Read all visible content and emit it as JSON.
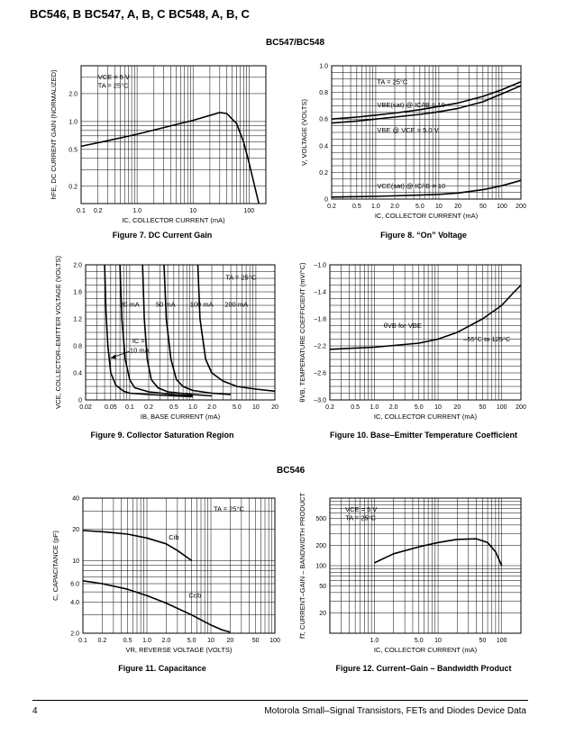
{
  "header": "BC546, B BC547, A, B, C BC548, A, B, C",
  "sections": {
    "top": "BC547/BC548",
    "bottom": "BC546"
  },
  "figures": [
    "Figure 7. DC Current Gain",
    "Figure 8. “On” Voltage",
    "Figure 9. Collector Saturation Region",
    "Figure 10. Base–Emitter Temperature Coefficient",
    "Figure 11. Capacitance",
    "Figure 12. Current–Gain – Bandwidth Product"
  ],
  "footer": {
    "page": "4",
    "text": "Motorola Small–Signal Transistors, FETs and Diodes Device Data"
  },
  "chart_data": [
    {
      "type": "line",
      "xscale": "log",
      "yscale": "log",
      "xlim": [
        0.1,
        200
      ],
      "ylim": [
        0.13,
        4
      ],
      "xlabel": "IC, COLLECTOR CURRENT (mA)",
      "ylabel": "hFE, DC CURRENT GAIN (NORMALIZED)",
      "xticks": [
        {
          "v": 0.1,
          "t": "0.1"
        },
        {
          "v": 0.2,
          "t": "0.2"
        },
        {
          "v": 1,
          "t": "1.0"
        },
        {
          "v": 10,
          "t": "10"
        },
        {
          "v": 100,
          "t": "100"
        }
      ],
      "yticks": [
        {
          "v": 0.2,
          "t": "0.2"
        },
        {
          "v": 0.5,
          "t": "0.5"
        },
        {
          "v": 1,
          "t": "1.0"
        },
        {
          "v": 2,
          "t": "2.0"
        }
      ],
      "annotations": [
        {
          "x": 0.2,
          "y": 2.85,
          "t": "VCE = 5 V"
        },
        {
          "x": 0.2,
          "y": 2.3,
          "t": "TA = 25°C"
        }
      ],
      "series": [
        {
          "x": [
            0.1,
            0.3,
            1,
            3,
            10,
            30,
            40,
            60,
            80,
            100,
            150
          ],
          "y": [
            0.54,
            0.62,
            0.73,
            0.86,
            1.03,
            1.25,
            1.22,
            0.95,
            0.6,
            0.36,
            0.13
          ]
        }
      ]
    },
    {
      "type": "line",
      "xscale": "log",
      "yscale": "linear",
      "xlim": [
        0.2,
        200
      ],
      "ylim": [
        0,
        1
      ],
      "xlabel": "IC, COLLECTOR CURRENT (mA)",
      "ylabel": "V, VOLTAGE (VOLTS)",
      "xticks": [
        {
          "v": 0.2,
          "t": "0.2"
        },
        {
          "v": 0.5,
          "t": "0.5"
        },
        {
          "v": 1,
          "t": "1.0"
        },
        {
          "v": 2,
          "t": "2.0"
        },
        {
          "v": 5,
          "t": "5.0"
        },
        {
          "v": 10,
          "t": "10"
        },
        {
          "v": 20,
          "t": "20"
        },
        {
          "v": 50,
          "t": "50"
        },
        {
          "v": 100,
          "t": "100"
        },
        {
          "v": 200,
          "t": "200"
        }
      ],
      "yticks": [
        {
          "v": 0,
          "t": "0"
        },
        {
          "v": 0.2,
          "t": "0.2"
        },
        {
          "v": 0.4,
          "t": "0.4"
        },
        {
          "v": 0.6,
          "t": "0.6"
        },
        {
          "v": 0.8,
          "t": "0.8"
        },
        {
          "v": 1,
          "t": "1.0"
        }
      ],
      "annotations": [
        {
          "x": 1.05,
          "y": 0.86,
          "t": "TA = 25°C"
        },
        {
          "x": 1.05,
          "y": 0.69,
          "t": "VBE(sat) @ IC/IB = 10"
        },
        {
          "x": 1.05,
          "y": 0.5,
          "t": "VBE @ VCE = 5.0 V"
        },
        {
          "x": 1.05,
          "y": 0.08,
          "t": "VCE(sat) @ IC/IB = 10"
        }
      ],
      "series": [
        {
          "x": [
            0.2,
            0.5,
            1,
            2,
            5,
            10,
            20,
            50,
            100,
            200
          ],
          "y": [
            0.6,
            0.615,
            0.63,
            0.645,
            0.67,
            0.695,
            0.72,
            0.77,
            0.82,
            0.88
          ]
        },
        {
          "x": [
            0.2,
            0.5,
            1,
            2,
            5,
            10,
            20,
            50,
            100,
            200
          ],
          "y": [
            0.57,
            0.585,
            0.6,
            0.615,
            0.635,
            0.655,
            0.68,
            0.73,
            0.79,
            0.85
          ]
        },
        {
          "x": [
            0.2,
            1,
            5,
            10,
            20,
            50,
            100,
            200
          ],
          "y": [
            0.015,
            0.02,
            0.03,
            0.035,
            0.045,
            0.07,
            0.1,
            0.14
          ]
        }
      ]
    },
    {
      "type": "line",
      "xscale": "log",
      "yscale": "linear",
      "xlim": [
        0.02,
        20
      ],
      "ylim": [
        0,
        2
      ],
      "xlabel": "IB, BASE CURRENT (mA)",
      "ylabel": "VCE, COLLECTOR–EMITTER VOLTAGE (VOLTS)",
      "xticks": [
        {
          "v": 0.02,
          "t": "0.02"
        },
        {
          "v": 0.05,
          "t": "0.05"
        },
        {
          "v": 0.1,
          "t": "0.1"
        },
        {
          "v": 0.2,
          "t": "0.2"
        },
        {
          "v": 0.5,
          "t": "0.5"
        },
        {
          "v": 1,
          "t": "1.0"
        },
        {
          "v": 2,
          "t": "2.0"
        },
        {
          "v": 5,
          "t": "5.0"
        },
        {
          "v": 10,
          "t": "10"
        },
        {
          "v": 20,
          "t": "20"
        }
      ],
      "yticks": [
        {
          "v": 0,
          "t": "0"
        },
        {
          "v": 0.4,
          "t": "0.4"
        },
        {
          "v": 0.8,
          "t": "0.8"
        },
        {
          "v": 1.2,
          "t": "1.2"
        },
        {
          "v": 1.6,
          "t": "1.6"
        },
        {
          "v": 2,
          "t": "2.0"
        }
      ],
      "annotations": [
        {
          "x": 3.3,
          "y": 1.78,
          "t": "TA = 25°C"
        },
        {
          "x": 0.07,
          "y": 1.38,
          "t": "20 mA"
        },
        {
          "x": 0.26,
          "y": 1.38,
          "t": "50 mA"
        },
        {
          "x": 0.9,
          "y": 1.38,
          "t": "100 mA"
        },
        {
          "x": 3.2,
          "y": 1.38,
          "t": "200 mA"
        },
        {
          "x": 0.11,
          "y": 0.84,
          "t": "IC ="
        },
        {
          "x": 0.1,
          "y": 0.7,
          "t": "10 mA"
        }
      ],
      "series": [
        {
          "x": [
            0.04,
            0.042,
            0.045,
            0.05,
            0.06,
            0.08,
            0.1,
            0.2,
            0.5,
            1
          ],
          "y": [
            2.0,
            1.3,
            0.8,
            0.4,
            0.22,
            0.13,
            0.1,
            0.08,
            0.06,
            0.05
          ]
        },
        {
          "x": [
            0.07,
            0.075,
            0.085,
            0.1,
            0.12,
            0.2,
            0.5,
            1
          ],
          "y": [
            2.0,
            1.2,
            0.6,
            0.3,
            0.18,
            0.12,
            0.08,
            0.06
          ]
        },
        {
          "x": [
            0.16,
            0.17,
            0.19,
            0.22,
            0.28,
            0.4,
            1,
            2
          ],
          "y": [
            2.0,
            1.2,
            0.6,
            0.3,
            0.18,
            0.12,
            0.08,
            0.06
          ]
        },
        {
          "x": [
            0.35,
            0.38,
            0.45,
            0.55,
            0.7,
            1,
            2,
            4
          ],
          "y": [
            2.0,
            1.2,
            0.6,
            0.3,
            0.2,
            0.14,
            0.1,
            0.08
          ]
        },
        {
          "x": [
            1.2,
            1.3,
            1.6,
            2,
            3,
            5,
            10,
            20
          ],
          "y": [
            2.0,
            1.2,
            0.6,
            0.4,
            0.28,
            0.2,
            0.16,
            0.13
          ]
        }
      ]
    },
    {
      "type": "line",
      "xscale": "log",
      "yscale": "linear",
      "xlim": [
        0.2,
        200
      ],
      "ylim": [
        -3,
        -1
      ],
      "xlabel": "IC, COLLECTOR CURRENT (mA)",
      "ylabel": "θVB, TEMPERATURE COEFFICIENT (mV/°C)",
      "xticks": [
        {
          "v": 0.2,
          "t": "0.2"
        },
        {
          "v": 0.5,
          "t": "0.5"
        },
        {
          "v": 1,
          "t": "1.0"
        },
        {
          "v": 2,
          "t": "2.0"
        },
        {
          "v": 5,
          "t": "5.0"
        },
        {
          "v": 10,
          "t": "10"
        },
        {
          "v": 20,
          "t": "20"
        },
        {
          "v": 50,
          "t": "50"
        },
        {
          "v": 100,
          "t": "100"
        },
        {
          "v": 200,
          "t": "200"
        }
      ],
      "yticks": [
        {
          "v": -1,
          "t": "–1.0"
        },
        {
          "v": -1.4,
          "t": "–1.4"
        },
        {
          "v": -1.8,
          "t": "–1.8"
        },
        {
          "v": -2.2,
          "t": "–2.2"
        },
        {
          "v": -2.6,
          "t": "–2.6"
        },
        {
          "v": -3,
          "t": "–3.0"
        }
      ],
      "annotations": [
        {
          "x": 1.4,
          "y": -1.93,
          "t": "θVB for VBE"
        },
        {
          "x": 25,
          "y": -2.13,
          "t": "–55°C to 125°C"
        }
      ],
      "series": [
        {
          "x": [
            0.2,
            1,
            5,
            10,
            20,
            50,
            100,
            150,
            200
          ],
          "y": [
            -2.25,
            -2.22,
            -2.16,
            -2.1,
            -2.0,
            -1.8,
            -1.6,
            -1.42,
            -1.3
          ]
        }
      ]
    },
    {
      "type": "line",
      "xscale": "log",
      "yscale": "log",
      "xlim": [
        0.1,
        100
      ],
      "ylim": [
        2,
        40
      ],
      "xlabel": "VR, REVERSE VOLTAGE (VOLTS)",
      "ylabel": "C, CAPACITANCE (pF)",
      "xticks": [
        {
          "v": 0.1,
          "t": "0.1"
        },
        {
          "v": 0.2,
          "t": "0.2"
        },
        {
          "v": 0.5,
          "t": "0.5"
        },
        {
          "v": 1,
          "t": "1.0"
        },
        {
          "v": 2,
          "t": "2.0"
        },
        {
          "v": 5,
          "t": "5.0"
        },
        {
          "v": 10,
          "t": "10"
        },
        {
          "v": 20,
          "t": "20"
        },
        {
          "v": 50,
          "t": "50"
        },
        {
          "v": 100,
          "t": "100"
        }
      ],
      "yticks": [
        {
          "v": 2,
          "t": "2.0"
        },
        {
          "v": 4,
          "t": "4.0"
        },
        {
          "v": 6,
          "t": "6.0"
        },
        {
          "v": 10,
          "t": "10"
        },
        {
          "v": 20,
          "t": "20"
        },
        {
          "v": 40,
          "t": "40"
        }
      ],
      "annotations": [
        {
          "x": 11,
          "y": 30,
          "t": "TA = 25°C"
        },
        {
          "x": 2.2,
          "y": 16,
          "t": "Cib"
        },
        {
          "x": 4.5,
          "y": 4.4,
          "t": "Cob"
        }
      ],
      "series": [
        {
          "x": [
            0.1,
            0.2,
            0.5,
            1,
            2,
            3,
            5
          ],
          "y": [
            19.5,
            19,
            18,
            16.5,
            14.5,
            12.5,
            10
          ]
        },
        {
          "x": [
            0.1,
            0.2,
            0.5,
            1,
            2,
            5,
            10,
            15,
            20
          ],
          "y": [
            6.4,
            6.0,
            5.3,
            4.6,
            3.9,
            3.0,
            2.4,
            2.15,
            2.05
          ]
        }
      ]
    },
    {
      "type": "line",
      "xscale": "log",
      "yscale": "log",
      "xlim": [
        0.2,
        200
      ],
      "ylim": [
        10,
        1000
      ],
      "xlabel": "IC, COLLECTOR CURRENT (mA)",
      "ylabel": "fT, CURRENT–GAIN – BANDWIDTH PRODUCT",
      "xticks": [
        {
          "v": 1,
          "t": "1.0"
        },
        {
          "v": 5,
          "t": "5.0"
        },
        {
          "v": 10,
          "t": "10"
        },
        {
          "v": 50,
          "t": "50"
        },
        {
          "v": 100,
          "t": "100"
        }
      ],
      "yticks": [
        {
          "v": 20,
          "t": "20"
        },
        {
          "v": 50,
          "t": "50"
        },
        {
          "v": 100,
          "t": "100"
        },
        {
          "v": 200,
          "t": "200"
        },
        {
          "v": 500,
          "t": "500"
        }
      ],
      "annotations": [
        {
          "x": 0.35,
          "y": 630,
          "t": "VCE = 5 V"
        },
        {
          "x": 0.35,
          "y": 470,
          "t": "TA = 25°C"
        }
      ],
      "series": [
        {
          "x": [
            1,
            2,
            5,
            10,
            20,
            40,
            60,
            80,
            100
          ],
          "y": [
            110,
            150,
            190,
            220,
            245,
            250,
            220,
            160,
            100
          ]
        }
      ]
    }
  ]
}
